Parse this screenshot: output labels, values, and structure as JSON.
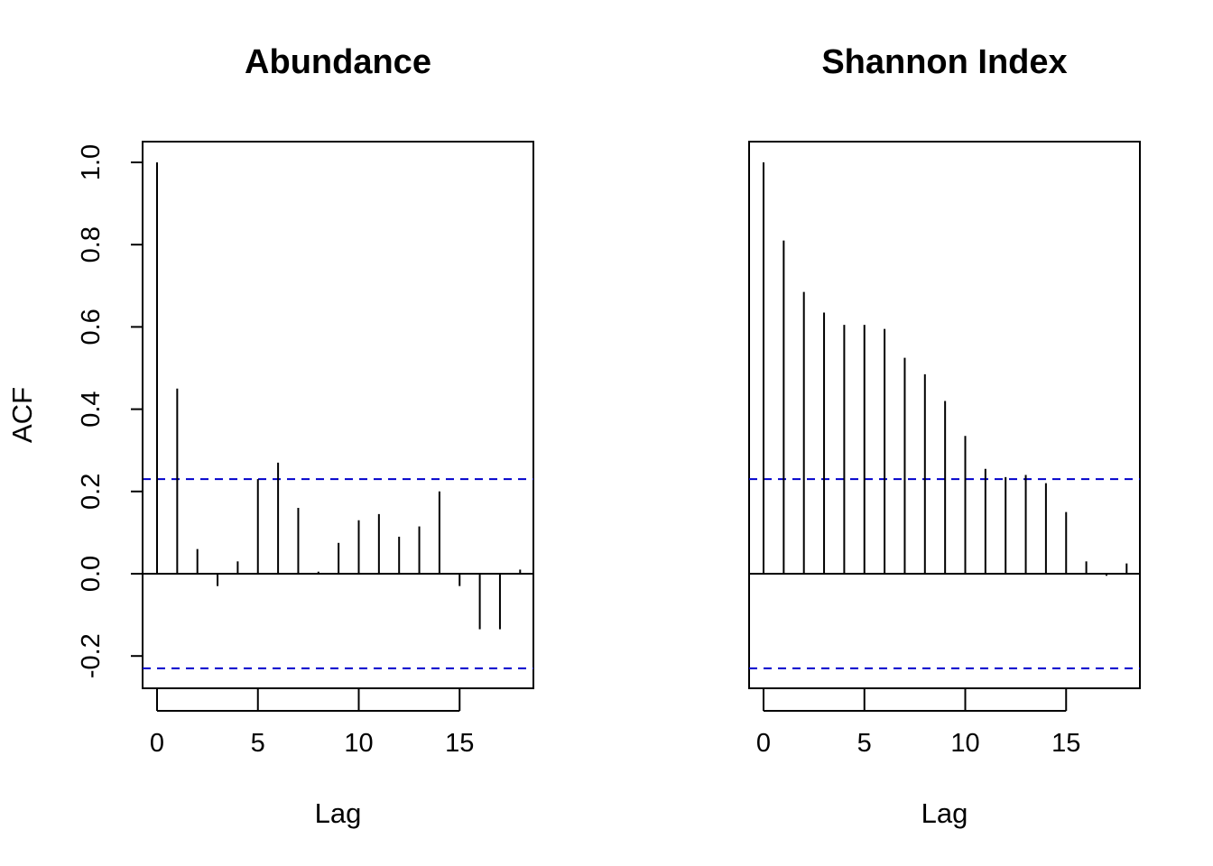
{
  "chart_data": [
    {
      "type": "bar",
      "subtype": "acf-stem",
      "title": "Abundance",
      "xlabel": "Lag",
      "ylabel": "ACF",
      "xlim": [
        0,
        18
      ],
      "ylim": [
        -0.28,
        1.05
      ],
      "x_ticks": [
        0,
        5,
        10,
        15
      ],
      "y_ticks": [
        -0.2,
        0.0,
        0.2,
        0.4,
        0.6,
        0.8,
        1.0
      ],
      "y_tick_labels": [
        "-0.2",
        "0.0",
        "0.2",
        "0.4",
        "0.6",
        "0.8",
        "1.0"
      ],
      "show_y_axis": true,
      "confidence_bound": 0.23,
      "confidence_color": "#0000cc",
      "lags": [
        0,
        1,
        2,
        3,
        4,
        5,
        6,
        7,
        8,
        9,
        10,
        11,
        12,
        13,
        14,
        15,
        16,
        17,
        18
      ],
      "values": [
        1.0,
        0.45,
        0.06,
        -0.03,
        0.03,
        0.23,
        0.27,
        0.16,
        0.005,
        0.075,
        0.13,
        0.145,
        0.09,
        0.115,
        0.2,
        -0.03,
        -0.135,
        -0.135,
        0.01
      ]
    },
    {
      "type": "bar",
      "subtype": "acf-stem",
      "title": "Shannon Index",
      "xlabel": "Lag",
      "ylabel": "",
      "xlim": [
        0,
        18
      ],
      "ylim": [
        -0.28,
        1.05
      ],
      "x_ticks": [
        0,
        5,
        10,
        15
      ],
      "y_ticks": [],
      "y_tick_labels": [],
      "show_y_axis": false,
      "confidence_bound": 0.23,
      "confidence_color": "#0000cc",
      "lags": [
        0,
        1,
        2,
        3,
        4,
        5,
        6,
        7,
        8,
        9,
        10,
        11,
        12,
        13,
        14,
        15,
        16,
        17,
        18
      ],
      "values": [
        1.0,
        0.81,
        0.685,
        0.635,
        0.605,
        0.605,
        0.595,
        0.525,
        0.485,
        0.42,
        0.335,
        0.255,
        0.235,
        0.24,
        0.22,
        0.15,
        0.03,
        -0.005,
        0.025
      ]
    }
  ]
}
